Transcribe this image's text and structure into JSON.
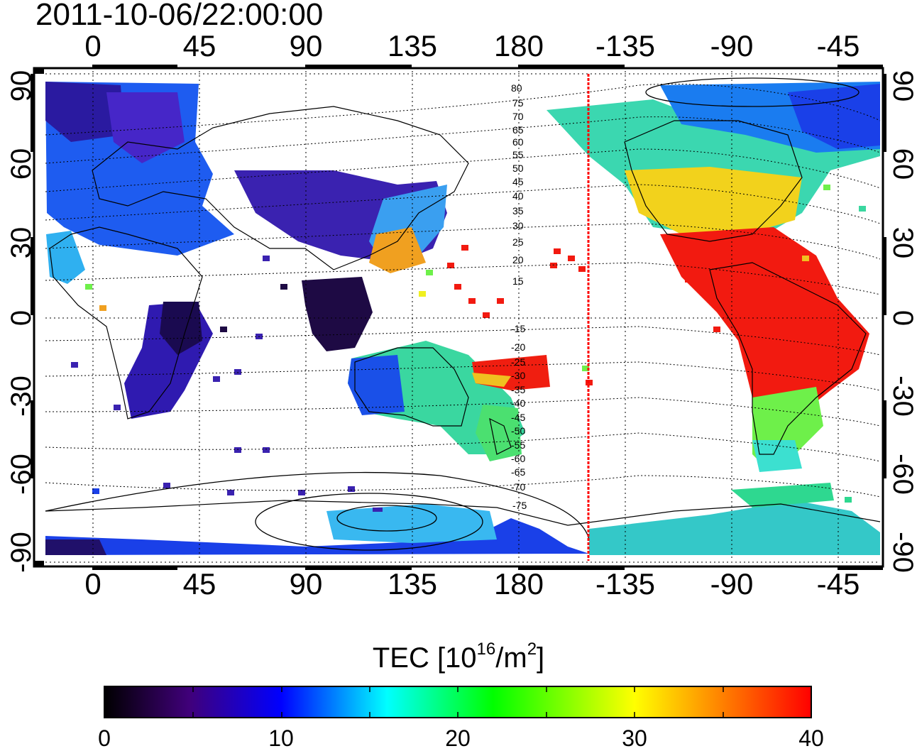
{
  "timestamp": "2011-10-06/22:00:00",
  "map": {
    "top_lon_labels": [
      "0",
      "45",
      "90",
      "135",
      "180",
      "-135",
      "-90",
      "-45"
    ],
    "bottom_lon_labels": [
      "0",
      "45",
      "90",
      "135",
      "180",
      "-135",
      "-90",
      "-45"
    ],
    "left_lat_labels": [
      "90",
      "60",
      "30",
      "0",
      "-30",
      "-60",
      "-90"
    ],
    "right_lat_labels": [
      "90",
      "60",
      "30",
      "0",
      "-30",
      "-60",
      "-90"
    ],
    "contour_labels": [
      "80",
      "75",
      "70",
      "65",
      "60",
      "55",
      "50",
      "45",
      "40",
      "35",
      "30",
      "25",
      "20",
      "15",
      "-15",
      "-20",
      "-25",
      "-30",
      "-35",
      "-40",
      "-45",
      "-50",
      "-55",
      "-60",
      "-65",
      "-70",
      "-75"
    ],
    "terminator_color": "#ff0000"
  },
  "colorbar": {
    "title_prefix": "TEC  [10",
    "title_exp1": "16",
    "title_mid": "/m",
    "title_exp2": "2",
    "title_suffix": "]",
    "tick_labels": [
      "0",
      "10",
      "20",
      "30",
      "40"
    ],
    "min": 0,
    "max": 40,
    "colors": [
      "#000000",
      "#40007a",
      "#0000ff",
      "#00ffff",
      "#00ff00",
      "#ffff00",
      "#ff0000"
    ]
  }
}
